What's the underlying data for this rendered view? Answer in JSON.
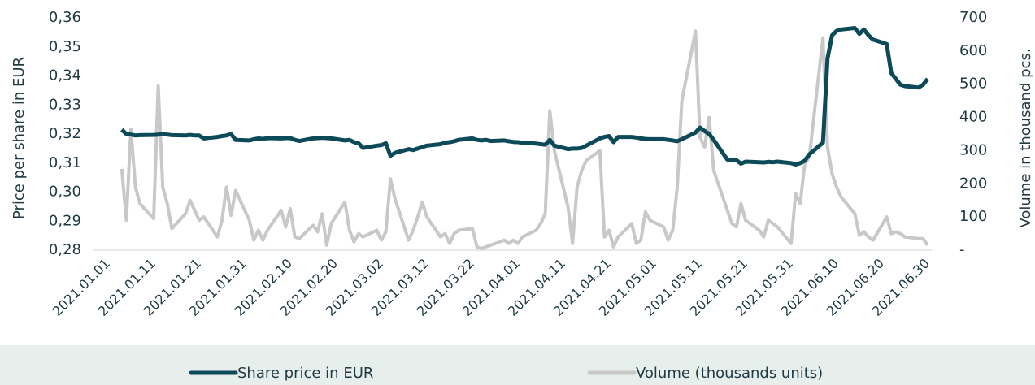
{
  "chart_data": {
    "type": "line",
    "y_label": "Price per share in EUR",
    "y2_label": "Volume in thousand pcs.",
    "x": [
      "2021.01.04",
      "2021.01.05",
      "2021.01.06",
      "2021.01.07",
      "2021.01.08",
      "2021.01.11",
      "2021.01.12",
      "2021.01.13",
      "2021.01.14",
      "2021.01.15",
      "2021.01.18",
      "2021.01.19",
      "2021.01.20",
      "2021.01.21",
      "2021.01.22",
      "2021.01.25",
      "2021.01.26",
      "2021.01.27",
      "2021.01.28",
      "2021.01.29",
      "2021.02.01",
      "2021.02.02",
      "2021.02.03",
      "2021.02.04",
      "2021.02.05",
      "2021.02.08",
      "2021.02.09",
      "2021.02.10",
      "2021.02.11",
      "2021.02.12",
      "2021.02.15",
      "2021.02.16",
      "2021.02.17",
      "2021.02.18",
      "2021.02.19",
      "2021.02.22",
      "2021.02.23",
      "2021.02.24",
      "2021.02.25",
      "2021.02.26",
      "2021.03.01",
      "2021.03.02",
      "2021.03.03",
      "2021.03.04",
      "2021.03.05",
      "2021.03.08",
      "2021.03.09",
      "2021.03.10",
      "2021.03.11",
      "2021.03.12",
      "2021.03.15",
      "2021.03.16",
      "2021.03.17",
      "2021.03.18",
      "2021.03.19",
      "2021.03.22",
      "2021.03.23",
      "2021.03.24",
      "2021.03.25",
      "2021.03.26",
      "2021.03.29",
      "2021.03.30",
      "2021.03.31",
      "2021.04.01",
      "2021.04.02",
      "2021.04.05",
      "2021.04.06",
      "2021.04.07",
      "2021.04.08",
      "2021.04.09",
      "2021.04.12",
      "2021.04.13",
      "2021.04.14",
      "2021.04.15",
      "2021.04.16",
      "2021.04.19",
      "2021.04.20",
      "2021.04.21",
      "2021.04.22",
      "2021.04.23",
      "2021.04.26",
      "2021.04.27",
      "2021.04.28",
      "2021.04.29",
      "2021.04.30",
      "2021.05.03",
      "2021.05.04",
      "2021.05.05",
      "2021.05.06",
      "2021.05.07",
      "2021.05.10",
      "2021.05.11",
      "2021.05.12",
      "2021.05.13",
      "2021.05.14",
      "2021.05.17",
      "2021.05.18",
      "2021.05.19",
      "2021.05.20",
      "2021.05.21",
      "2021.05.24",
      "2021.05.25",
      "2021.05.26",
      "2021.05.27",
      "2021.05.28",
      "2021.05.31",
      "2021.06.01",
      "2021.06.02",
      "2021.06.03",
      "2021.06.04",
      "2021.06.07",
      "2021.06.08",
      "2021.06.09",
      "2021.06.10",
      "2021.06.11",
      "2021.06.14",
      "2021.06.15",
      "2021.06.16",
      "2021.06.17",
      "2021.06.18",
      "2021.06.21",
      "2021.06.22",
      "2021.06.23",
      "2021.06.24",
      "2021.06.25",
      "2021.06.28",
      "2021.06.29",
      "2021.06.30"
    ],
    "series": [
      {
        "name": "Share price in EUR",
        "color": "#0c4a59",
        "axis": "y",
        "values": [
          0.3215,
          0.32,
          0.3198,
          0.3195,
          0.3196,
          0.3197,
          0.3198,
          0.32,
          0.3198,
          0.3196,
          0.3195,
          0.3197,
          0.3195,
          0.3195,
          0.3185,
          0.319,
          0.3193,
          0.3195,
          0.32,
          0.318,
          0.3178,
          0.3182,
          0.3185,
          0.3183,
          0.3186,
          0.3185,
          0.3186,
          0.3186,
          0.318,
          0.3176,
          0.3185,
          0.3186,
          0.3187,
          0.3186,
          0.3185,
          0.3178,
          0.318,
          0.3172,
          0.3168,
          0.3152,
          0.316,
          0.3162,
          0.3168,
          0.3125,
          0.3135,
          0.3148,
          0.3145,
          0.315,
          0.3155,
          0.316,
          0.3165,
          0.317,
          0.3172,
          0.3175,
          0.318,
          0.3185,
          0.318,
          0.3178,
          0.318,
          0.3176,
          0.3178,
          0.3175,
          0.3173,
          0.3172,
          0.317,
          0.3167,
          0.3165,
          0.3163,
          0.318,
          0.316,
          0.3148,
          0.315,
          0.315,
          0.3152,
          0.316,
          0.3185,
          0.319,
          0.3193,
          0.3172,
          0.319,
          0.319,
          0.3188,
          0.3185,
          0.3183,
          0.3182,
          0.3182,
          0.318,
          0.3178,
          0.3175,
          0.3182,
          0.3205,
          0.3222,
          0.321,
          0.32,
          0.318,
          0.3112,
          0.3112,
          0.311,
          0.3098,
          0.3105,
          0.3103,
          0.3102,
          0.3104,
          0.3103,
          0.3105,
          0.31,
          0.3095,
          0.31,
          0.3108,
          0.313,
          0.317,
          0.346,
          0.354,
          0.3555,
          0.356,
          0.3565,
          0.3545,
          0.356,
          0.354,
          0.3525,
          0.351,
          0.341,
          0.339,
          0.337,
          0.3365,
          0.336,
          0.337,
          0.339
        ]
      },
      {
        "name": "Volume (thousands units)",
        "color": "#c8c8c8",
        "axis": "y2",
        "values": [
          245,
          90,
          365,
          190,
          140,
          95,
          495,
          190,
          140,
          65,
          110,
          150,
          120,
          90,
          100,
          40,
          90,
          190,
          105,
          180,
          90,
          30,
          60,
          30,
          60,
          120,
          70,
          125,
          40,
          35,
          75,
          55,
          110,
          15,
          80,
          145,
          60,
          25,
          50,
          40,
          60,
          30,
          55,
          215,
          155,
          30,
          60,
          100,
          145,
          100,
          40,
          50,
          20,
          50,
          60,
          65,
          10,
          5,
          10,
          15,
          30,
          20,
          30,
          20,
          40,
          60,
          80,
          110,
          420,
          300,
          130,
          20,
          190,
          240,
          270,
          300,
          40,
          60,
          10,
          40,
          80,
          20,
          30,
          115,
          90,
          70,
          30,
          60,
          190,
          450,
          660,
          340,
          310,
          400,
          240,
          120,
          80,
          70,
          140,
          90,
          60,
          40,
          90,
          80,
          70,
          20,
          170,
          140,
          260,
          280,
          640,
          310,
          230,
          190,
          160,
          110,
          45,
          55,
          40,
          30,
          100,
          50,
          55,
          50,
          40,
          35,
          35,
          15
        ]
      }
    ],
    "xticks": [
      "2021.01.01",
      "2021.01.11",
      "2021.01.21",
      "2021.01.31",
      "2021.02.10",
      "2021.02.20",
      "2021.03.02",
      "2021.03.12",
      "2021.03.22",
      "2021.04.01",
      "2021.04.11",
      "2021.04.21",
      "2021.05.01",
      "2021.05.11",
      "2021.05.21",
      "2021.05.31",
      "2021.06.10",
      "2021.06.20",
      "2021.06.30"
    ],
    "ylim": [
      0.28,
      0.36
    ],
    "yticks": [
      {
        "value": 0.28,
        "label": "0,28"
      },
      {
        "value": 0.29,
        "label": "0,29"
      },
      {
        "value": 0.3,
        "label": "0,30"
      },
      {
        "value": 0.31,
        "label": "0,31"
      },
      {
        "value": 0.32,
        "label": "0,32"
      },
      {
        "value": 0.33,
        "label": "0,33"
      },
      {
        "value": 0.34,
        "label": "0,34"
      },
      {
        "value": 0.35,
        "label": "0,35"
      },
      {
        "value": 0.36,
        "label": "0,36"
      }
    ],
    "y2lim": [
      0,
      700
    ],
    "y2ticks": [
      {
        "value": 0,
        "label": "-"
      },
      100,
      200,
      300,
      400,
      500,
      600,
      700
    ],
    "grid": false,
    "legend": "bottom"
  }
}
